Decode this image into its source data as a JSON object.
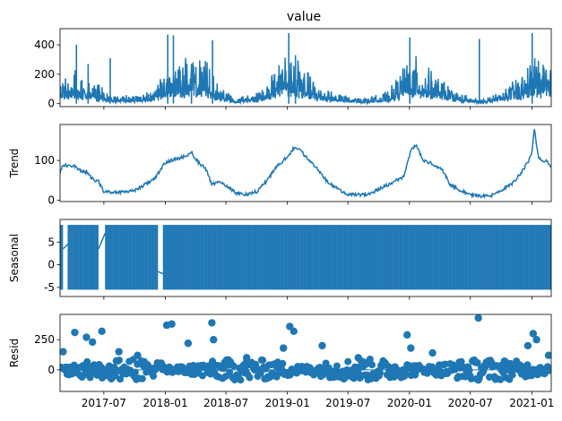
{
  "figure": {
    "title": "value"
  },
  "colors": {
    "series": "#1f77b4",
    "axis": "#000000"
  },
  "x_tick_labels": [
    "2017-07",
    "2018-01",
    "2018-07",
    "2019-01",
    "2019-07",
    "2020-01",
    "2020-07",
    "2021-01"
  ],
  "chart_data": [
    {
      "type": "line",
      "panel": "observed",
      "title": "value",
      "ylabel": "",
      "xlim": [
        "2017-02-20",
        "2021-02-28"
      ],
      "ylim": [
        -20,
        510
      ],
      "yticks": [
        0,
        200,
        400
      ],
      "xticks": [
        "2017-07-01",
        "2018-01-01",
        "2018-07-01",
        "2019-01-01",
        "2019-07-01",
        "2020-01-01",
        "2020-07-01",
        "2021-01-01"
      ],
      "spikes": [
        {
          "x": "2017-04-10",
          "y": 400
        },
        {
          "x": "2017-05-15",
          "y": 270
        },
        {
          "x": "2017-07-20",
          "y": 310
        },
        {
          "x": "2018-01-08",
          "y": 470
        },
        {
          "x": "2018-01-25",
          "y": 465
        },
        {
          "x": "2018-03-20",
          "y": 270
        },
        {
          "x": "2018-05-22",
          "y": 430
        },
        {
          "x": "2019-01-05",
          "y": 480
        },
        {
          "x": "2019-01-25",
          "y": 330
        },
        {
          "x": "2020-01-02",
          "y": 450
        },
        {
          "x": "2020-07-28",
          "y": 440
        },
        {
          "x": "2021-01-02",
          "y": 480
        }
      ],
      "series": [
        {
          "x": [
            "2017-02-20",
            "2017-04-01",
            "2017-06-01",
            "2017-08-01",
            "2017-10-01",
            "2017-12-01",
            "2018-01-15",
            "2018-03-01",
            "2018-05-01",
            "2018-06-15",
            "2018-08-01",
            "2018-10-01",
            "2018-12-01",
            "2019-01-10",
            "2019-02-15",
            "2019-04-01",
            "2019-06-01",
            "2019-07-15",
            "2019-09-01",
            "2019-11-01",
            "2020-01-05",
            "2020-02-15",
            "2020-04-01",
            "2020-06-01",
            "2020-08-01",
            "2020-10-01",
            "2020-12-01",
            "2021-01-10",
            "2021-02-28"
          ],
          "y": [
            60,
            80,
            50,
            20,
            20,
            35,
            95,
            110,
            100,
            40,
            15,
            25,
            90,
            130,
            90,
            50,
            25,
            15,
            15,
            30,
            120,
            90,
            60,
            25,
            10,
            30,
            70,
            120,
            85
          ]
        }
      ]
    },
    {
      "type": "line",
      "panel": "trend",
      "ylabel": "Trend",
      "xlim": [
        "2017-02-20",
        "2021-02-28"
      ],
      "ylim": [
        -3,
        190
      ],
      "yticks": [
        0,
        100
      ],
      "xticks": [
        "2017-07-01",
        "2018-01-01",
        "2018-07-01",
        "2019-01-01",
        "2019-07-01",
        "2020-01-01",
        "2020-07-01",
        "2021-01-01"
      ],
      "series": [
        {
          "x": [
            "2017-02-20",
            "2017-03-01",
            "2017-03-15",
            "2017-04-01",
            "2017-04-20",
            "2017-05-10",
            "2017-06-01",
            "2017-06-15",
            "2017-07-01",
            "2017-08-01",
            "2017-09-01",
            "2017-10-01",
            "2017-11-01",
            "2017-12-01",
            "2018-01-01",
            "2018-01-20",
            "2018-02-10",
            "2018-03-01",
            "2018-03-20",
            "2018-04-10",
            "2018-05-01",
            "2018-05-20",
            "2018-06-10",
            "2018-07-01",
            "2018-08-01",
            "2018-09-01",
            "2018-10-01",
            "2018-11-01",
            "2018-12-01",
            "2019-01-01",
            "2019-01-20",
            "2019-02-10",
            "2019-03-01",
            "2019-04-01",
            "2019-05-01",
            "2019-06-01",
            "2019-07-01",
            "2019-08-01",
            "2019-09-01",
            "2019-10-01",
            "2019-11-01",
            "2019-12-15",
            "2020-01-05",
            "2020-01-20",
            "2020-02-10",
            "2020-03-01",
            "2020-03-20",
            "2020-04-10",
            "2020-05-01",
            "2020-06-01",
            "2020-07-01",
            "2020-08-01",
            "2020-09-01",
            "2020-10-01",
            "2020-11-01",
            "2020-12-01",
            "2020-12-20",
            "2021-01-01",
            "2021-01-08",
            "2021-01-20",
            "2021-02-01",
            "2021-02-15",
            "2021-02-28"
          ],
          "y": [
            70,
            90,
            85,
            88,
            75,
            70,
            50,
            48,
            22,
            20,
            22,
            25,
            40,
            55,
            95,
            100,
            105,
            110,
            120,
            95,
            80,
            40,
            45,
            38,
            18,
            15,
            22,
            50,
            85,
            110,
            130,
            125,
            105,
            80,
            45,
            28,
            15,
            14,
            15,
            28,
            40,
            60,
            125,
            140,
            100,
            95,
            85,
            75,
            40,
            25,
            14,
            10,
            12,
            25,
            40,
            70,
            95,
            120,
            180,
            110,
            95,
            100,
            80
          ]
        }
      ]
    },
    {
      "type": "area",
      "panel": "seasonal",
      "ylabel": "Seasonal",
      "xlim": [
        "2017-02-20",
        "2021-02-28"
      ],
      "ylim": [
        -7,
        10
      ],
      "yticks": [
        -5,
        0,
        5
      ],
      "xticks": [
        "2017-07-01",
        "2018-01-01",
        "2018-07-01",
        "2019-01-01",
        "2019-07-01",
        "2020-01-01",
        "2020-07-01",
        "2021-01-01"
      ],
      "oscillation_range": [
        -5.5,
        8.8
      ],
      "gaps": [
        {
          "from": "2017-03-01",
          "to": "2017-03-15",
          "y": [
            3.5,
            4.5
          ]
        },
        {
          "from": "2017-06-15",
          "to": "2017-07-05",
          "y": [
            3.5,
            7.0
          ]
        },
        {
          "from": "2017-12-10",
          "to": "2017-12-25",
          "y": [
            -1.5,
            -2.0
          ]
        }
      ],
      "series": [
        {
          "x": [
            "2017-02-20",
            "2017-03-01",
            "2017-03-15",
            "2017-06-15",
            "2017-07-05",
            "2017-12-10",
            "2017-12-25",
            "2021-02-28"
          ],
          "y": [
            -5.5,
            8.8,
            -5.5,
            8.8,
            -5.5,
            8.8,
            -5.5,
            8.8
          ]
        }
      ]
    },
    {
      "type": "scatter",
      "panel": "resid",
      "ylabel": "Resid",
      "xlim": [
        "2017-02-20",
        "2021-02-28"
      ],
      "ylim": [
        -180,
        460
      ],
      "yticks": [
        0,
        250
      ],
      "xticks": [
        "2017-07-01",
        "2018-01-01",
        "2018-07-01",
        "2019-01-01",
        "2019-07-01",
        "2020-01-01",
        "2020-07-01",
        "2021-01-01"
      ],
      "band": {
        "low": -60,
        "high": 70
      },
      "series": [
        {
          "x": [
            "2017-03-01",
            "2017-04-05",
            "2017-05-10",
            "2017-05-28",
            "2017-06-25",
            "2017-08-15",
            "2017-10-10",
            "2018-01-05",
            "2018-01-20",
            "2018-03-10",
            "2018-05-20",
            "2018-05-25",
            "2018-09-01",
            "2018-12-20",
            "2019-01-08",
            "2019-01-20",
            "2019-04-15",
            "2019-08-01",
            "2019-12-25",
            "2020-01-05",
            "2020-03-10",
            "2020-07-25",
            "2020-12-20",
            "2021-01-05",
            "2021-01-15",
            "2021-02-20"
          ],
          "y": [
            150,
            310,
            270,
            230,
            320,
            150,
            120,
            370,
            380,
            220,
            390,
            250,
            100,
            180,
            360,
            320,
            200,
            100,
            290,
            180,
            140,
            430,
            200,
            300,
            250,
            120
          ]
        }
      ]
    }
  ]
}
